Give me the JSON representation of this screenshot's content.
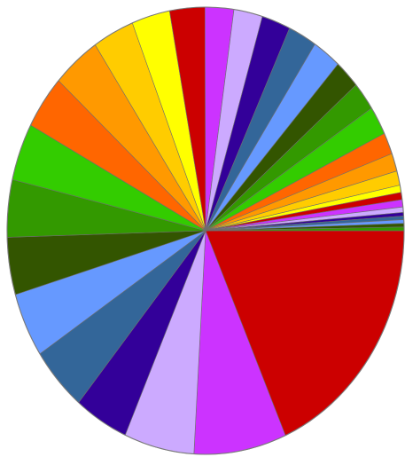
{
  "chart_data": {
    "type": "pie",
    "title": "",
    "legend": "none",
    "start_angle_deg": 0,
    "direction": "clockwise",
    "slices": [
      {
        "value": 19.72,
        "color": "#cc0000"
      },
      {
        "value": 8.06,
        "color": "#cc33ff"
      },
      {
        "value": 6.11,
        "color": "#ccaaff"
      },
      {
        "value": 4.72,
        "color": "#330099"
      },
      {
        "value": 5.0,
        "color": "#336699"
      },
      {
        "value": 5.0,
        "color": "#6699ff"
      },
      {
        "value": 4.44,
        "color": "#335500"
      },
      {
        "value": 4.44,
        "color": "#339900"
      },
      {
        "value": 4.44,
        "color": "#33cc00"
      },
      {
        "value": 4.17,
        "color": "#ff6600"
      },
      {
        "value": 4.17,
        "color": "#ff9900"
      },
      {
        "value": 3.61,
        "color": "#ffcc00"
      },
      {
        "value": 3.33,
        "color": "#ffff00"
      },
      {
        "value": 3.06,
        "color": "#cc0000"
      },
      {
        "value": 2.5,
        "color": "#cc33ff"
      },
      {
        "value": 2.5,
        "color": "#ccaaff"
      },
      {
        "value": 2.5,
        "color": "#330099"
      },
      {
        "value": 2.5,
        "color": "#336699"
      },
      {
        "value": 2.5,
        "color": "#6699ff"
      },
      {
        "value": 2.22,
        "color": "#335500"
      },
      {
        "value": 2.22,
        "color": "#339900"
      },
      {
        "value": 2.22,
        "color": "#33cc00"
      },
      {
        "value": 1.67,
        "color": "#ff6600"
      },
      {
        "value": 1.39,
        "color": "#ff9900"
      },
      {
        "value": 1.11,
        "color": "#ffcc00"
      },
      {
        "value": 0.56,
        "color": "#ffff00"
      },
      {
        "value": 0.56,
        "color": "#cc0000"
      },
      {
        "value": 0.56,
        "color": "#cc33ff"
      },
      {
        "value": 0.42,
        "color": "#ccaaff"
      },
      {
        "value": 0.28,
        "color": "#330099"
      },
      {
        "value": 0.28,
        "color": "#336699"
      },
      {
        "value": 0.28,
        "color": "#6699ff"
      },
      {
        "value": 0.28,
        "color": "#335500"
      },
      {
        "value": 0.28,
        "color": "#339900"
      }
    ]
  }
}
